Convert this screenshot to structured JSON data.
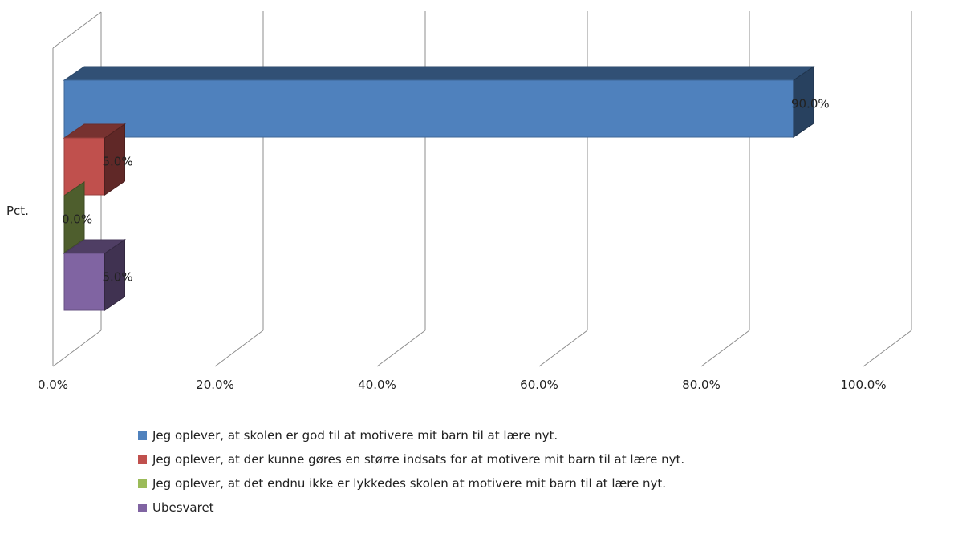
{
  "chart_data": {
    "type": "bar",
    "orientation": "horizontal",
    "style": "3d-clustered",
    "category_label": "Pct.",
    "xlim": [
      0,
      100
    ],
    "x_ticks": [
      "0.0%",
      "20.0%",
      "40.0%",
      "60.0%",
      "80.0%",
      "100.0%"
    ],
    "grid": true,
    "legend_position": "bottom",
    "series": [
      {
        "name": "Jeg oplever, at skolen er god til at motivere mit barn til at lære nyt.",
        "value": 90.0,
        "label": "90.0%",
        "color": "#4f81bd"
      },
      {
        "name": "Jeg oplever, at der kunne gøres en større indsats for at motivere mit barn til at lære nyt.",
        "value": 5.0,
        "label": "5.0%",
        "color": "#c0504d"
      },
      {
        "name": "Jeg oplever, at det endnu ikke er lykkedes skolen at motivere mit barn til at lære nyt.",
        "value": 0.0,
        "label": "0.0%",
        "color": "#9bbb59"
      },
      {
        "name": "Ubesvaret",
        "value": 5.0,
        "label": "5.0%",
        "color": "#8064a2"
      }
    ]
  }
}
